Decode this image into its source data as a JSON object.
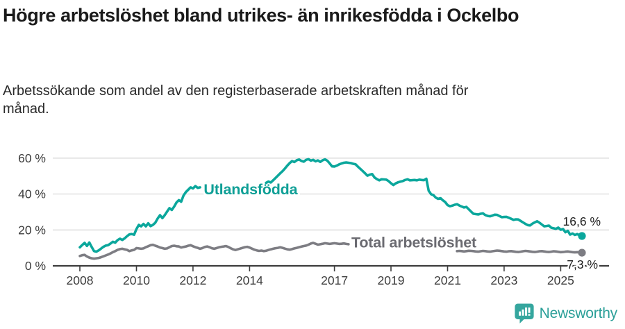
{
  "header": {
    "title": "Högre arbetslöshet bland utrikes- än inrikesfödda i Ockelbo",
    "subtitle": "Arbetssökande som andel av den registerbaserade arbetskraften månad för månad."
  },
  "footer": {
    "brand": "Newsworthy",
    "brand_color": "#2b9f98"
  },
  "chart_data": {
    "type": "line",
    "title": "Högre arbetslöshet bland utrikes- än inrikesfödda i Ockelbo",
    "subtitle": "Arbetssökande som andel av den registerbaserade arbetskraften månad för månad.",
    "x_unit": "month",
    "x_start_year": 2008,
    "grid": "horizontal",
    "ylim": [
      0,
      63
    ],
    "axis_color": "#3c3c3c",
    "grid_color": "#dadada",
    "tick_label_color": "#3d3d3d",
    "annotation_color": "#1d1d1d",
    "y_ticks": [
      {
        "value": 0,
        "label": "0 %"
      },
      {
        "value": 20,
        "label": "20 %"
      },
      {
        "value": 40,
        "label": "40 %"
      },
      {
        "value": 60,
        "label": "60 %"
      }
    ],
    "x_ticks": [
      {
        "year": 2008,
        "label": "2008"
      },
      {
        "year": 2010,
        "label": "2010"
      },
      {
        "year": 2012,
        "label": "2012"
      },
      {
        "year": 2014,
        "label": "2014"
      },
      {
        "year": 2017,
        "label": "2017"
      },
      {
        "year": 2019,
        "label": "2019"
      },
      {
        "year": 2021,
        "label": "2021"
      },
      {
        "year": 2023,
        "label": "2023"
      },
      {
        "year": 2025,
        "label": "2025"
      }
    ],
    "series": [
      {
        "name": "Utlandsfödda",
        "color": "#0ba79c",
        "label_color": "#0f9f96",
        "end_label": "16,6 %",
        "end_value": 16.6,
        "inline_label": {
          "t": 2012.38,
          "v": 39.9
        },
        "values": [
          10.3,
          11.6,
          12.8,
          11.1,
          13,
          10.5,
          8.2,
          7.9,
          8.6,
          9.6,
          10.6,
          11.3,
          11.5,
          12.4,
          13.4,
          12.9,
          14.3,
          15.1,
          14.4,
          15.3,
          16.5,
          17.5,
          17.7,
          17.3,
          20.5,
          22.8,
          22,
          23.3,
          22,
          23.7,
          22.1,
          22.8,
          24,
          26.3,
          28.2,
          26.6,
          28.2,
          30.2,
          32.1,
          31.1,
          33,
          35.3,
          36.6,
          35.7,
          39.2,
          41.1,
          42.4,
          43.7,
          43.1,
          44.4,
          43.4,
          43.7,
          null,
          null,
          null,
          null,
          null,
          null,
          null,
          null,
          null,
          null,
          null,
          null,
          null,
          null,
          null,
          null,
          null,
          null,
          null,
          null,
          null,
          null,
          null,
          null,
          null,
          null,
          null,
          46.2,
          46.9,
          46.4,
          47.6,
          48.9,
          50.2,
          51.5,
          52.7,
          54.2,
          55.8,
          57.2,
          58.3,
          57.8,
          58.8,
          59.2,
          58.4,
          58,
          59,
          59.4,
          58.6,
          59,
          58.2,
          58.7,
          57.9,
          58.8,
          59.3,
          58.5,
          57,
          55.4,
          55.3,
          55.8,
          56.5,
          57,
          57.4,
          57.6,
          57.4,
          57.2,
          56.8,
          56.5,
          55.2,
          54,
          52.8,
          51.5,
          50.2,
          50.8,
          51.1,
          49.2,
          48.3,
          47.6,
          48.2,
          48.1,
          48,
          47.2,
          46,
          45,
          45.9,
          46.5,
          46.9,
          47.2,
          47.8,
          48.2,
          47.6,
          47.7,
          47.8,
          47.6,
          48,
          47.8,
          47.7,
          48.5,
          41.8,
          39.9,
          39.4,
          38,
          37.3,
          37.7,
          36.5,
          35.5,
          33.8,
          33.2,
          33.5,
          34,
          34.3,
          33.6,
          33,
          32.5,
          32.8,
          31.5,
          30.2,
          29,
          28.8,
          28.6,
          29,
          29.2,
          28.3,
          27.8,
          27.6,
          28,
          28.5,
          28.4,
          27.7,
          27.1,
          27.2,
          27.3,
          26.8,
          26.2,
          25.6,
          25.9,
          25.8,
          25,
          24.2,
          23.4,
          22.7,
          22.5,
          23.5,
          24.2,
          24.8,
          24,
          23,
          22,
          22.2,
          22.4,
          21.2,
          20.9,
          20.6,
          21.3,
          20.1,
          20.5,
          18.7,
          19.5,
          17.4,
          18,
          17.2,
          17.7,
          17,
          16.6
        ]
      },
      {
        "name": "Total arbetslöshet",
        "color": "#7d7d83",
        "label_color": "#6b6b71",
        "end_label": "7,3 %",
        "end_value": 7.3,
        "inline_label": {
          "t": 2017.6,
          "v": 10.3
        },
        "values": [
          5.5,
          5.9,
          6.1,
          5.2,
          4.6,
          4.2,
          4,
          4.2,
          4.4,
          4.8,
          5.3,
          5.8,
          6.3,
          6.9,
          7.6,
          8.2,
          8.9,
          9.3,
          9.5,
          9.2,
          8.9,
          8.2,
          8.6,
          8.9,
          9.9,
          9.7,
          9.5,
          9.7,
          10.4,
          10.9,
          11.5,
          11.7,
          11.2,
          10.8,
          10.2,
          9.9,
          9.5,
          9.7,
          10.4,
          11,
          11.2,
          10.9,
          10.8,
          10.2,
          10.5,
          10.8,
          11.2,
          11.5,
          10.9,
          10.4,
          10,
          9.5,
          9.9,
          10.5,
          10.8,
          10.4,
          9.8,
          9.5,
          9.9,
          10.3,
          10.6,
          10.8,
          11,
          10.5,
          9.8,
          9.2,
          8.8,
          9.2,
          9.6,
          10,
          10.4,
          10.6,
          10.2,
          9.6,
          9,
          8.6,
          8.3,
          8.5,
          8.2,
          8.4,
          8.8,
          9.2,
          9.5,
          9.8,
          10,
          10.3,
          10,
          9.6,
          9.2,
          9,
          9.3,
          9.7,
          10,
          10.4,
          10.7,
          11,
          11.3,
          11.8,
          12.4,
          12.8,
          12.3,
          11.8,
          12,
          12.3,
          12.6,
          12.4,
          12.2,
          12.4,
          12.6,
          12.4,
          12.2,
          12.3,
          12.5,
          12.2,
          12,
          null,
          null,
          null,
          null,
          null,
          null,
          null,
          null,
          null,
          null,
          null,
          null,
          null,
          null,
          null,
          null,
          null,
          null,
          null,
          null,
          null,
          null,
          null,
          null,
          null,
          null,
          null,
          null,
          null,
          null,
          null,
          null,
          null,
          null,
          null,
          null,
          null,
          null,
          null,
          null,
          null,
          null,
          null,
          null,
          null,
          8.2,
          8.3,
          8.2,
          8,
          8.2,
          8.4,
          8.3,
          8.2,
          8,
          7.9,
          8.1,
          8.3,
          8.2,
          8,
          7.9,
          8.1,
          8.3,
          8.5,
          8.4,
          8.2,
          8,
          7.9,
          8.1,
          8.2,
          8,
          7.8,
          7.7,
          7.9,
          8.1,
          8.3,
          8.2,
          8,
          7.8,
          7.7,
          7.9,
          8.1,
          8.2,
          8,
          7.8,
          7.7,
          7.9,
          8.1,
          8,
          7.8,
          7.6,
          7.7,
          7.9,
          8,
          7.8,
          7.6,
          7.5,
          7.6,
          7.5,
          7.3
        ]
      }
    ]
  }
}
